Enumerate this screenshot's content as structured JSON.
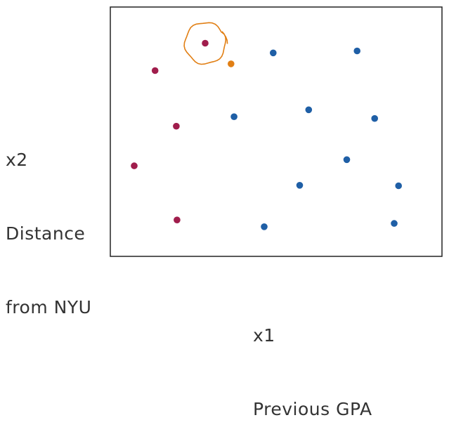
{
  "chart_data": {
    "type": "scatter",
    "title": "",
    "xlabel": [
      "x1",
      "Previous GPA"
    ],
    "ylabel": [
      "x2",
      "Distance",
      "from NYU"
    ],
    "xlim": [
      0,
      100
    ],
    "ylim": [
      0,
      100
    ],
    "grid": false,
    "legend": "none",
    "colors": {
      "red": "#a01d4c",
      "blue": "#1f5fa6",
      "orange": "#e17f14",
      "highlight": "#e17f14",
      "frame": "#222222"
    },
    "series": [
      {
        "color": "red",
        "points": [
          {
            "x": 28.6,
            "y": 85.5
          },
          {
            "x": 13.5,
            "y": 74.5
          },
          {
            "x": 19.9,
            "y": 52.2
          },
          {
            "x": 7.2,
            "y": 36.3
          },
          {
            "x": 20.1,
            "y": 14.6
          }
        ]
      },
      {
        "color": "blue",
        "points": [
          {
            "x": 49.1,
            "y": 81.6
          },
          {
            "x": 74.4,
            "y": 82.4
          },
          {
            "x": 37.3,
            "y": 56.0
          },
          {
            "x": 59.8,
            "y": 58.8
          },
          {
            "x": 79.7,
            "y": 55.3
          },
          {
            "x": 71.3,
            "y": 38.8
          },
          {
            "x": 57.1,
            "y": 28.5
          },
          {
            "x": 86.9,
            "y": 28.3
          },
          {
            "x": 46.4,
            "y": 11.9
          },
          {
            "x": 85.6,
            "y": 13.2
          }
        ]
      },
      {
        "color": "orange",
        "points": [
          {
            "x": 36.4,
            "y": 77.2
          }
        ]
      }
    ],
    "highlight": {
      "x": 28.6,
      "y": 85.5
    }
  }
}
